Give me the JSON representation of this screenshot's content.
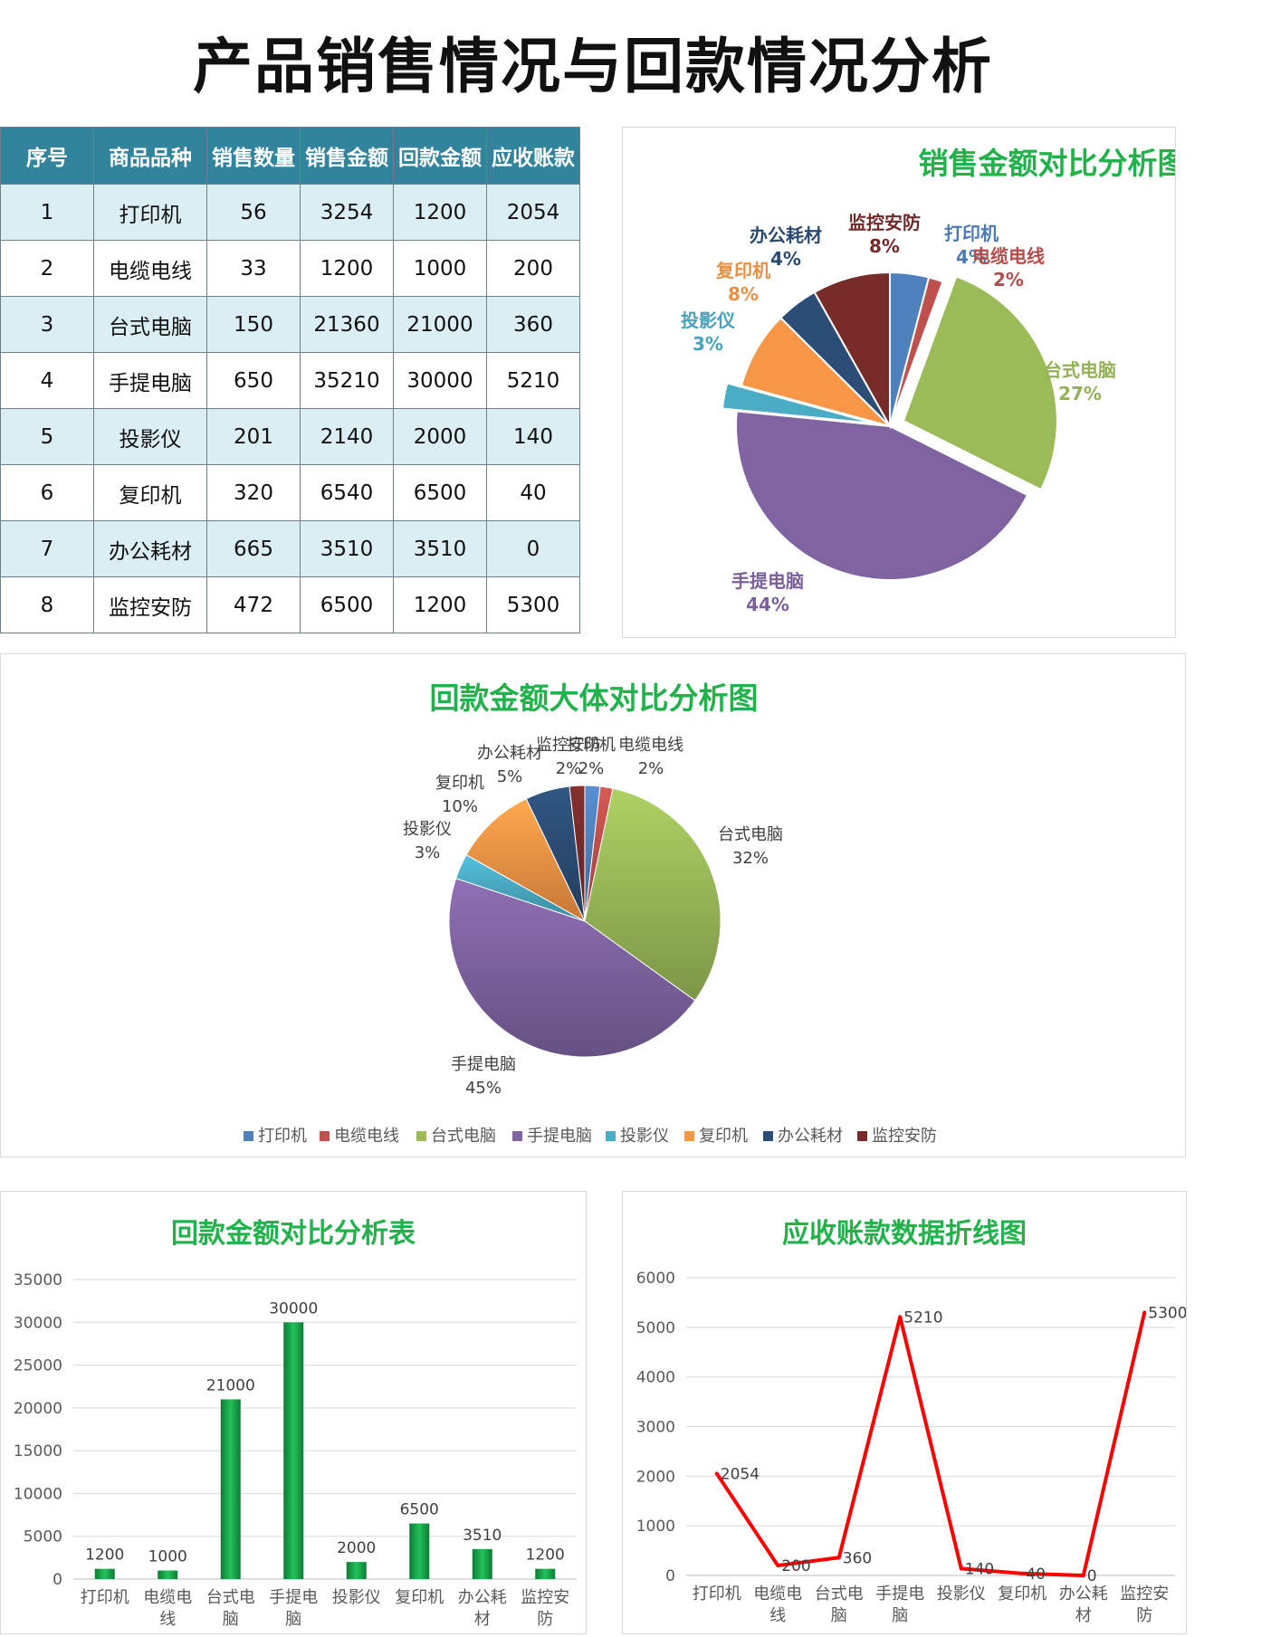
{
  "page_title": "产品销售情况与回款情况分析",
  "table": {
    "headers": [
      "序号",
      "商品品种",
      "销售数量",
      "销售金额",
      "回款金额",
      "应收账款"
    ],
    "rows": [
      [
        "1",
        "打印机",
        "56",
        "3254",
        "1200",
        "2054"
      ],
      [
        "2",
        "电缆电线",
        "33",
        "1200",
        "1000",
        "200"
      ],
      [
        "3",
        "台式电脑",
        "150",
        "21360",
        "21000",
        "360"
      ],
      [
        "4",
        "手提电脑",
        "650",
        "35210",
        "30000",
        "5210"
      ],
      [
        "5",
        "投影仪",
        "201",
        "2140",
        "2000",
        "140"
      ],
      [
        "6",
        "复印机",
        "320",
        "6540",
        "6500",
        "40"
      ],
      [
        "7",
        "办公耗材",
        "665",
        "3510",
        "3510",
        "0"
      ],
      [
        "8",
        "监控安防",
        "472",
        "6500",
        "1200",
        "5300"
      ]
    ]
  },
  "colors": {
    "打印机": "#4f81bd",
    "电缆电线": "#c0504d",
    "台式电脑": "#9bbb59",
    "手提电脑": "#8064a2",
    "投影仪": "#4bacc6",
    "复印机": "#f79646",
    "办公耗材": "#2c4d75",
    "监控安防": "#772c2a",
    "title_green": "#22b24c",
    "table_header": "#31849b",
    "table_stripe": "#daeef3",
    "bar_green": "#1aa34a",
    "line_red": "#ff0000"
  },
  "chart_data": [
    {
      "type": "pie",
      "title": "销售金额对比分析图",
      "categories": [
        "打印机",
        "电缆电线",
        "台式电脑",
        "手提电脑",
        "投影仪",
        "复印机",
        "办公耗材",
        "监控安防"
      ],
      "values": [
        3254,
        1200,
        21360,
        35210,
        2140,
        6540,
        3510,
        6500
      ],
      "labels": [
        "4%",
        "2%",
        "27%",
        "44%",
        "3%",
        "8%",
        "4%",
        "8%"
      ],
      "exploded": [
        "台式电脑",
        "投影仪"
      ]
    },
    {
      "type": "pie",
      "title": "回款金额大体对比分析图",
      "categories": [
        "打印机",
        "电缆电线",
        "台式电脑",
        "手提电脑",
        "投影仪",
        "复印机",
        "办公耗材",
        "监控安防"
      ],
      "values": [
        1200,
        1000,
        21000,
        30000,
        2000,
        6500,
        3510,
        1200
      ],
      "labels": [
        "2%",
        "2%",
        "32%",
        "45%",
        "3%",
        "10%",
        "5%",
        "2%"
      ],
      "legend": "bottom"
    },
    {
      "type": "bar",
      "title": "回款金额对比分析表",
      "categories": [
        "打印机",
        "电缆电线",
        "台式电脑",
        "手提电脑",
        "投影仪",
        "复印机",
        "办公耗材",
        "监控安防"
      ],
      "values": [
        1200,
        1000,
        21000,
        30000,
        2000,
        6500,
        3510,
        1200
      ],
      "ylim": [
        0,
        35000
      ],
      "yticks": [
        0,
        5000,
        10000,
        15000,
        20000,
        25000,
        30000,
        35000
      ],
      "grid": true
    },
    {
      "type": "line",
      "title": "应收账款数据折线图",
      "categories": [
        "打印机",
        "电缆电线",
        "台式电脑",
        "手提电脑",
        "投影仪",
        "复印机",
        "办公耗材",
        "监控安防"
      ],
      "values": [
        2054,
        200,
        360,
        5210,
        140,
        40,
        0,
        5300
      ],
      "ylim": [
        0,
        6000
      ],
      "yticks": [
        0,
        1000,
        2000,
        3000,
        4000,
        5000,
        6000
      ],
      "grid": true
    }
  ]
}
